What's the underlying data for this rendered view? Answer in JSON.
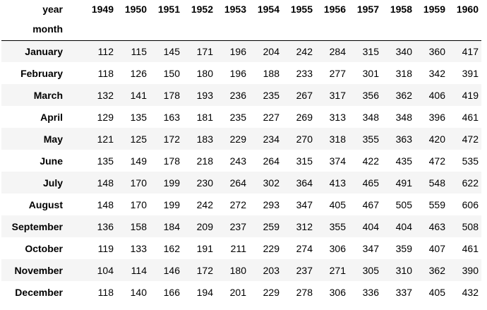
{
  "table": {
    "columns_label": "year",
    "index_label": "month",
    "years": [
      "1949",
      "1950",
      "1951",
      "1952",
      "1953",
      "1954",
      "1955",
      "1956",
      "1957",
      "1958",
      "1959",
      "1960"
    ],
    "rows": [
      {
        "month": "January",
        "values": [
          "112",
          "115",
          "145",
          "171",
          "196",
          "204",
          "242",
          "284",
          "315",
          "340",
          "360",
          "417"
        ]
      },
      {
        "month": "February",
        "values": [
          "118",
          "126",
          "150",
          "180",
          "196",
          "188",
          "233",
          "277",
          "301",
          "318",
          "342",
          "391"
        ]
      },
      {
        "month": "March",
        "values": [
          "132",
          "141",
          "178",
          "193",
          "236",
          "235",
          "267",
          "317",
          "356",
          "362",
          "406",
          "419"
        ]
      },
      {
        "month": "April",
        "values": [
          "129",
          "135",
          "163",
          "181",
          "235",
          "227",
          "269",
          "313",
          "348",
          "348",
          "396",
          "461"
        ]
      },
      {
        "month": "May",
        "values": [
          "121",
          "125",
          "172",
          "183",
          "229",
          "234",
          "270",
          "318",
          "355",
          "363",
          "420",
          "472"
        ]
      },
      {
        "month": "June",
        "values": [
          "135",
          "149",
          "178",
          "218",
          "243",
          "264",
          "315",
          "374",
          "422",
          "435",
          "472",
          "535"
        ]
      },
      {
        "month": "July",
        "values": [
          "148",
          "170",
          "199",
          "230",
          "264",
          "302",
          "364",
          "413",
          "465",
          "491",
          "548",
          "622"
        ]
      },
      {
        "month": "August",
        "values": [
          "148",
          "170",
          "199",
          "242",
          "272",
          "293",
          "347",
          "405",
          "467",
          "505",
          "559",
          "606"
        ]
      },
      {
        "month": "September",
        "values": [
          "136",
          "158",
          "184",
          "209",
          "237",
          "259",
          "312",
          "355",
          "404",
          "404",
          "463",
          "508"
        ]
      },
      {
        "month": "October",
        "values": [
          "119",
          "133",
          "162",
          "191",
          "211",
          "229",
          "274",
          "306",
          "347",
          "359",
          "407",
          "461"
        ]
      },
      {
        "month": "November",
        "values": [
          "104",
          "114",
          "146",
          "172",
          "180",
          "203",
          "237",
          "271",
          "305",
          "310",
          "362",
          "390"
        ]
      },
      {
        "month": "December",
        "values": [
          "118",
          "140",
          "166",
          "194",
          "201",
          "229",
          "278",
          "306",
          "336",
          "337",
          "405",
          "432"
        ]
      }
    ]
  }
}
